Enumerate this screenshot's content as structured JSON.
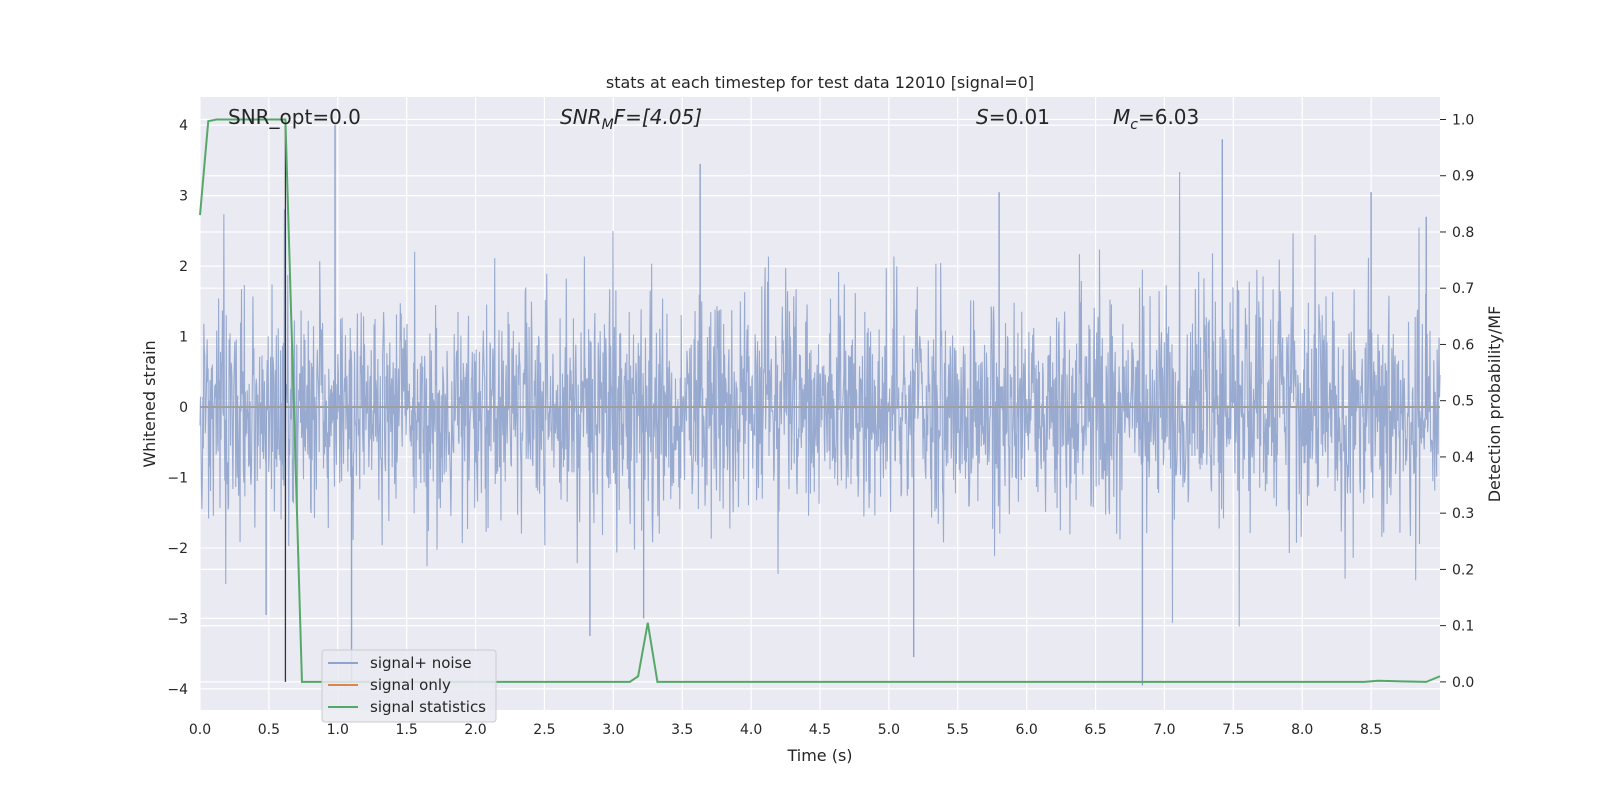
{
  "chart_data": {
    "type": "line",
    "title": "stats at each timestep for test data 12010 [signal=0]",
    "xlabel": "Time (s)",
    "ylabel": "Whitened strain",
    "ylabel_right": "Detection probability/MF",
    "xlim": [
      0.0,
      9.0
    ],
    "ylim": [
      -4.3,
      4.4
    ],
    "ylim_right": [
      -0.05,
      1.04
    ],
    "x_ticks": [
      "0.0",
      "0.5",
      "1.0",
      "1.5",
      "2.0",
      "2.5",
      "3.0",
      "3.5",
      "4.0",
      "4.5",
      "5.0",
      "5.5",
      "6.0",
      "6.5",
      "7.0",
      "7.5",
      "8.0",
      "8.5"
    ],
    "x_tick_values": [
      0.0,
      0.5,
      1.0,
      1.5,
      2.0,
      2.5,
      3.0,
      3.5,
      4.0,
      4.5,
      5.0,
      5.5,
      6.0,
      6.5,
      7.0,
      7.5,
      8.0,
      8.5
    ],
    "y_ticks": [
      "4",
      "3",
      "2",
      "1",
      "0",
      "−1",
      "−2",
      "−3",
      "−4"
    ],
    "y_tick_values": [
      4,
      3,
      2,
      1,
      0,
      -1,
      -2,
      -3,
      -4
    ],
    "y_ticks_right": [
      "1.0",
      "0.9",
      "0.8",
      "0.7",
      "0.6",
      "0.5",
      "0.4",
      "0.3",
      "0.2",
      "0.1",
      "0.0"
    ],
    "y_tick_values_right": [
      1.0,
      0.9,
      0.8,
      0.7,
      0.6,
      0.5,
      0.4,
      0.3,
      0.2,
      0.1,
      0.0
    ],
    "grid": true,
    "legend_position": "lower-left",
    "annotations": {
      "snr_opt": "SNR_opt=0.0",
      "snr_mf_main": "SNR",
      "snr_mf_sub": "M",
      "snr_mf_rest": "F=[4.05]",
      "s_main": "S",
      "s_rest": "=0.01",
      "mc_main": "M",
      "mc_sub": "c",
      "mc_rest": "=6.03"
    },
    "vertical_marker_x": 0.62,
    "series": [
      {
        "name": "signal+ noise",
        "color": "#8fa3cc",
        "axis": "left",
        "kind": "noise",
        "approx_std": 0.8,
        "seed": 12010,
        "spikes": [
          [
            0.98,
            4.0
          ],
          [
            1.1,
            -3.9
          ],
          [
            2.83,
            -3.25
          ],
          [
            3.22,
            -3.0
          ],
          [
            3.63,
            3.45
          ],
          [
            5.18,
            -3.55
          ],
          [
            5.8,
            3.05
          ],
          [
            6.84,
            -3.95
          ],
          [
            7.42,
            3.8
          ],
          [
            8.5,
            3.05
          ],
          [
            8.9,
            2.7
          ],
          [
            0.48,
            -2.95
          ]
        ]
      },
      {
        "name": "signal only",
        "color": "#dd8452",
        "axis": "left",
        "x": [
          0.0,
          9.0
        ],
        "y": [
          0.0,
          0.0
        ]
      },
      {
        "name": "signal statistics",
        "color": "#55a868",
        "axis": "right",
        "x": [
          0.0,
          0.06,
          0.12,
          0.62,
          0.74,
          3.12,
          3.18,
          3.25,
          3.32,
          7.5,
          8.45,
          8.55,
          8.9,
          9.0
        ],
        "y": [
          0.83,
          0.997,
          1.0,
          1.0,
          0.0,
          0.0,
          0.01,
          0.105,
          0.0,
          0.0,
          0.0,
          0.002,
          0.0,
          0.01
        ]
      }
    ]
  }
}
